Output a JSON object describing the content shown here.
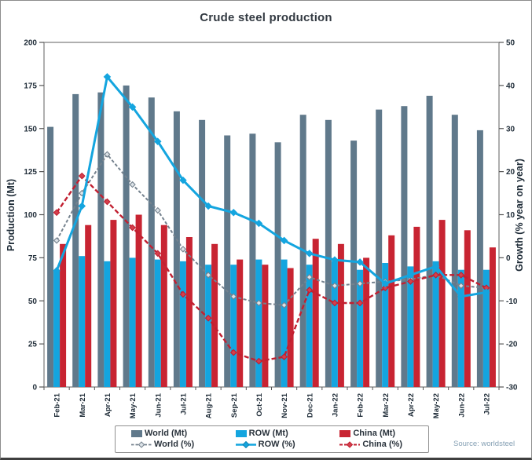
{
  "chart": {
    "title": "Crude steel production",
    "source": "Source: worldsteel"
  },
  "legend": {
    "world_mt": "World (Mt)",
    "row_mt": "ROW (Mt)",
    "china_mt": "China (Mt)",
    "world_pct": "World (%)",
    "row_pct": "ROW (%)",
    "china_pct": "China (%)"
  },
  "colors": {
    "world_bar": "#60798b",
    "row_bar": "#14a5df",
    "china_bar": "#c82432",
    "world_line": "#75828e",
    "row_line": "#14a5df",
    "china_line": "#c11f30",
    "text": "#1f2c38",
    "source_text": "#85a0b4"
  },
  "chart_data": {
    "type": "bar",
    "subtype": "grouped bars with overlaid lines, dual y-axis",
    "title": "Crude steel production",
    "grid": "off",
    "legend_position": "bottom",
    "categories": [
      "Feb-21",
      "Mar-21",
      "Apr-21",
      "May-21",
      "Jun-21",
      "Jul-21",
      "Aug-21",
      "Sep-21",
      "Oct-21",
      "Nov-21",
      "Dec-21",
      "Jan-22",
      "Feb-22",
      "Mar-22",
      "Apr-22",
      "May-22",
      "Jun-22",
      "Jul-22"
    ],
    "axis_left": {
      "label": "Production (Mt)",
      "range": [
        0,
        200
      ],
      "ticks": [
        0,
        25,
        50,
        75,
        100,
        125,
        150,
        175,
        200
      ]
    },
    "axis_right": {
      "label": "Growth (% year on year)",
      "range": [
        -30,
        50
      ],
      "ticks": [
        -30,
        -20,
        -10,
        0,
        10,
        20,
        30,
        40,
        50
      ]
    },
    "bar_series": [
      {
        "name": "World (Mt)",
        "axis": "left",
        "color": "#60798b",
        "values": [
          151,
          170,
          171,
          175,
          168,
          160,
          155,
          146,
          147,
          142,
          158,
          155,
          143,
          161,
          163,
          169,
          158,
          149
        ]
      },
      {
        "name": "ROW (Mt)",
        "axis": "left",
        "color": "#14a5df",
        "values": [
          67,
          76,
          73,
          75,
          74,
          73,
          71,
          71,
          74,
          74,
          71,
          73,
          68,
          72,
          70,
          73,
          68,
          68
        ]
      },
      {
        "name": "China (Mt)",
        "axis": "left",
        "color": "#c82432",
        "values": [
          83,
          94,
          97,
          100,
          94,
          87,
          83,
          74,
          71,
          69,
          86,
          83,
          75,
          88,
          93,
          97,
          91,
          81
        ]
      }
    ],
    "line_series": [
      {
        "name": "World (%)",
        "axis": "right",
        "color": "#75828e",
        "dash": "4 2.5",
        "width": 2,
        "marker_fill": "#dde3e8",
        "marker_size": 3.4,
        "values": [
          4,
          15,
          24,
          17,
          11,
          2,
          -4,
          -9,
          -10.5,
          -11,
          -4.5,
          -6.5,
          -6,
          -5.5,
          -5,
          -4,
          -6.5,
          -7
        ]
      },
      {
        "name": "China (%)",
        "axis": "right",
        "color": "#c11f30",
        "dash": "6 3",
        "width": 2.4,
        "marker_fill": "#d4404d",
        "marker_size": 3.6,
        "values": [
          10.5,
          19,
          13,
          7,
          1,
          -8.5,
          -14,
          -22,
          -24,
          -23,
          -7.5,
          -10.5,
          -10.5,
          -7,
          -5.5,
          -4,
          -4,
          -7
        ]
      },
      {
        "name": "ROW (%)",
        "axis": "right",
        "color": "#14a5df",
        "dash": "",
        "width": 3,
        "marker_fill": "#14a5df",
        "marker_size": 4,
        "values": [
          -3,
          12,
          42,
          35,
          27,
          18,
          12,
          10.5,
          8,
          4,
          1,
          -0.5,
          -1,
          -6,
          -4,
          -2,
          -9,
          -8
        ]
      }
    ]
  }
}
